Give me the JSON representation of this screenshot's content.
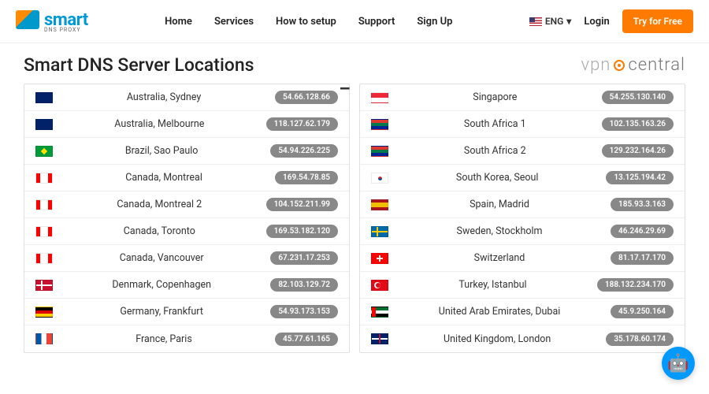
{
  "header": {
    "logo": "smart",
    "logo_sub": "DNS PROXY",
    "nav": [
      "Home",
      "Services",
      "How to setup",
      "Support",
      "Sign Up"
    ],
    "lang": "ENG",
    "login": "Login",
    "cta": "Try for Free"
  },
  "page_title": "Smart DNS Server Locations",
  "watermark": {
    "vpn": "vpn",
    "central": "central"
  },
  "left": [
    {
      "flag": "au",
      "loc": "Australia, Sydney",
      "ip": "54.66.128.66"
    },
    {
      "flag": "au",
      "loc": "Australia, Melbourne",
      "ip": "118.127.62.179"
    },
    {
      "flag": "br",
      "loc": "Brazil, Sao Paulo",
      "ip": "54.94.226.225"
    },
    {
      "flag": "ca",
      "loc": "Canada, Montreal",
      "ip": "169.54.78.85"
    },
    {
      "flag": "ca",
      "loc": "Canada, Montreal 2",
      "ip": "104.152.211.99"
    },
    {
      "flag": "ca",
      "loc": "Canada, Toronto",
      "ip": "169.53.182.120"
    },
    {
      "flag": "ca",
      "loc": "Canada, Vancouver",
      "ip": "67.231.17.253"
    },
    {
      "flag": "dk",
      "loc": "Denmark, Copenhagen",
      "ip": "82.103.129.72"
    },
    {
      "flag": "de",
      "loc": "Germany, Frankfurt",
      "ip": "54.93.173.153"
    },
    {
      "flag": "fr",
      "loc": "France, Paris",
      "ip": "45.77.61.165"
    }
  ],
  "right": [
    {
      "flag": "sg",
      "loc": "Singapore",
      "ip": "54.255.130.140"
    },
    {
      "flag": "za",
      "loc": "South Africa 1",
      "ip": "102.135.163.26"
    },
    {
      "flag": "za",
      "loc": "South Africa 2",
      "ip": "129.232.164.26"
    },
    {
      "flag": "kr",
      "loc": "South Korea, Seoul",
      "ip": "13.125.194.42"
    },
    {
      "flag": "es",
      "loc": "Spain, Madrid",
      "ip": "185.93.3.163"
    },
    {
      "flag": "se",
      "loc": "Sweden, Stockholm",
      "ip": "46.246.29.69"
    },
    {
      "flag": "ch",
      "loc": "Switzerland",
      "ip": "81.17.17.170"
    },
    {
      "flag": "tr",
      "loc": "Turkey, Istanbul",
      "ip": "188.132.234.170"
    },
    {
      "flag": "ae",
      "loc": "United Arab Emirates, Dubai",
      "ip": "45.9.250.164"
    },
    {
      "flag": "gb",
      "loc": "United Kingdom, London",
      "ip": "35.178.60.174"
    }
  ],
  "colors": {
    "accent": "#ff7b00",
    "logo": "#0099d4",
    "ip_bg": "#888888",
    "border": "#e0e0e0"
  }
}
